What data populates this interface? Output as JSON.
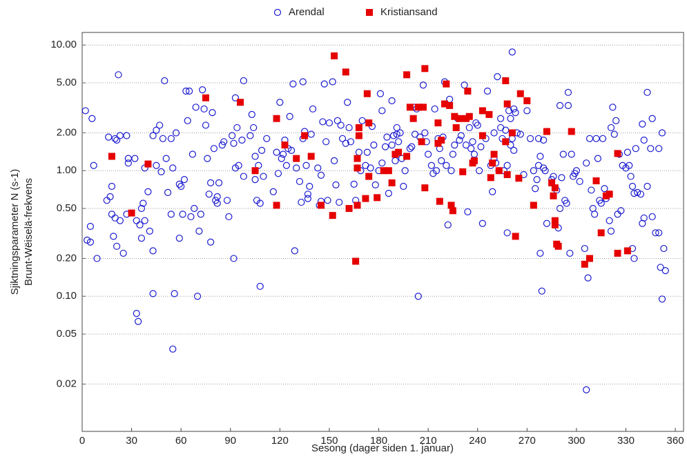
{
  "chart_data": {
    "type": "scatter",
    "xlabel": "Sesong (dager siden 1. januar)",
    "ylabel": [
      "Sjiktningsparameter N (s-1)",
      "Brunt-Wëiselä-frekvens"
    ],
    "xlim": [
      0,
      365
    ],
    "ylim": [
      0.0084,
      12.6
    ],
    "ylog": true,
    "grid": true,
    "legend": "top",
    "xticks": [
      0,
      30,
      60,
      90,
      120,
      150,
      180,
      210,
      240,
      270,
      300,
      330,
      360
    ],
    "yticks": [
      {
        "value": 10,
        "label": "10.00"
      },
      {
        "value": 5,
        "label": "5.00"
      },
      {
        "value": 2,
        "label": "2.00"
      },
      {
        "value": 1,
        "label": "1.00"
      },
      {
        "value": 0.5,
        "label": "0.50"
      },
      {
        "value": 0.2,
        "label": "0.20"
      },
      {
        "value": 0.1,
        "label": "0.10"
      },
      {
        "value": 0.05,
        "label": "0.05"
      },
      {
        "value": 0.02,
        "label": "0.02"
      }
    ],
    "series": [
      {
        "name": "Arendal",
        "color": "#1a1ad0",
        "marker": "circle",
        "x": [
          2,
          3,
          5,
          6,
          5,
          7,
          9,
          15,
          16,
          17,
          18,
          18,
          19,
          20,
          20,
          21,
          21,
          22,
          23,
          23,
          25,
          27,
          28,
          28,
          27,
          32,
          33,
          33,
          34,
          35,
          36,
          36,
          37,
          38,
          38,
          40,
          41,
          43,
          43,
          43,
          45,
          45,
          47,
          48,
          49,
          50,
          51,
          52,
          54,
          54,
          55,
          55,
          56,
          57,
          59,
          59,
          60,
          61,
          62,
          63,
          64,
          65,
          66,
          67,
          68,
          69,
          70,
          71,
          72,
          73,
          74,
          75,
          76,
          77,
          78,
          78,
          79,
          80,
          81,
          82,
          82,
          83,
          85,
          86,
          88,
          89,
          91,
          92,
          92,
          93,
          93,
          94,
          95,
          97,
          98,
          98,
          102,
          103,
          104,
          105,
          105,
          106,
          107,
          108,
          108,
          109,
          110,
          112,
          116,
          118,
          119,
          120,
          121,
          122,
          123,
          124,
          125,
          126,
          127,
          128,
          129,
          130,
          132,
          133,
          134,
          134,
          135,
          136,
          137,
          137,
          138,
          139,
          140,
          143,
          144,
          145,
          145,
          146,
          147,
          148,
          149,
          150,
          152,
          153,
          154,
          155,
          156,
          157,
          158,
          160,
          161,
          162,
          163,
          165,
          166,
          167,
          168,
          169,
          170,
          172,
          173,
          175,
          176,
          177,
          178,
          180,
          181,
          182,
          182,
          184,
          185,
          186,
          188,
          188,
          189,
          190,
          191,
          191,
          192,
          193,
          194,
          195,
          196,
          199,
          200,
          201,
          202,
          203,
          204,
          205,
          206,
          207,
          208,
          209,
          210,
          212,
          213,
          214,
          215,
          216,
          217,
          218,
          219,
          220,
          221,
          222,
          223,
          224,
          225,
          226,
          228,
          229,
          230,
          232,
          233,
          234,
          235,
          236,
          237,
          238,
          239,
          240,
          241,
          242,
          243,
          245,
          246,
          248,
          249,
          250,
          250,
          251,
          252,
          253,
          254,
          254,
          255,
          256,
          257,
          258,
          258,
          259,
          260,
          260,
          261,
          261,
          262,
          262,
          263,
          264,
          266,
          268,
          270,
          272,
          274,
          275,
          276,
          277,
          277,
          278,
          278,
          279,
          280,
          280,
          281,
          282,
          285,
          286,
          288,
          289,
          290,
          290,
          291,
          292,
          293,
          294,
          295,
          295,
          296,
          297,
          298,
          299,
          300,
          302,
          305,
          306,
          306,
          307,
          308,
          309,
          310,
          311,
          312,
          313,
          314,
          315,
          316,
          317,
          318,
          320,
          320,
          321,
          321,
          322,
          323,
          324,
          325,
          326,
          327,
          328,
          330,
          331,
          332,
          333,
          334,
          334,
          335,
          335,
          336,
          337,
          339,
          340,
          340,
          341,
          341,
          343,
          343,
          345,
          346,
          346,
          348,
          350,
          350,
          351,
          352,
          352,
          353,
          354
        ],
        "values": [
          3.0,
          0.28,
          0.27,
          2.6,
          0.36,
          1.1,
          0.2,
          0.58,
          1.85,
          0.62,
          0.45,
          0.75,
          0.3,
          0.42,
          1.8,
          0.25,
          1.75,
          5.8,
          1.9,
          0.4,
          0.22,
          1.9,
          1.25,
          1.15,
          0.45,
          1.25,
          0.4,
          0.073,
          0.063,
          0.37,
          0.5,
          0.29,
          0.55,
          0.4,
          1.05,
          0.68,
          0.33,
          0.23,
          0.105,
          1.9,
          1.1,
          2.1,
          2.3,
          0.98,
          1.8,
          5.2,
          1.25,
          0.67,
          1.8,
          0.45,
          1.05,
          0.038,
          0.105,
          2.0,
          0.29,
          0.78,
          0.75,
          0.45,
          0.85,
          4.3,
          2.5,
          4.3,
          0.43,
          1.35,
          0.5,
          3.2,
          0.1,
          0.33,
          0.45,
          4.4,
          3.1,
          2.3,
          1.25,
          0.65,
          0.27,
          0.8,
          2.9,
          1.5,
          0.58,
          0.62,
          0.55,
          0.8,
          1.6,
          1.7,
          0.58,
          0.43,
          1.9,
          0.2,
          1.65,
          3.8,
          1.05,
          2.2,
          1.1,
          1.75,
          5.2,
          0.9,
          1.9,
          2.8,
          2.2,
          1.3,
          0.85,
          0.58,
          1.1,
          0.55,
          0.12,
          1.45,
          0.9,
          1.8,
          0.68,
          1.4,
          0.95,
          3.5,
          1.25,
          1.35,
          1.75,
          1.1,
          1.5,
          2.7,
          1.45,
          4.9,
          0.23,
          1.05,
          0.82,
          0.56,
          1.8,
          5.1,
          2.05,
          1.1,
          0.65,
          0.6,
          0.75,
          1.95,
          3.1,
          1.05,
          0.53,
          0.92,
          0.57,
          2.45,
          4.9,
          1.7,
          0.58,
          2.4,
          5.1,
          1.2,
          0.77,
          2.5,
          0.56,
          2.3,
          1.8,
          1.65,
          3.5,
          2.2,
          1.7,
          0.78,
          0.58,
          1.05,
          1.4,
          1.0,
          2.5,
          1.1,
          1.4,
          1.05,
          2.25,
          1.6,
          0.77,
          1.0,
          4.1,
          1.15,
          3.0,
          1.55,
          1.85,
          0.66,
          3.6,
          1.6,
          1.9,
          1.2,
          2.2,
          1.95,
          1.7,
          2.0,
          1.25,
          0.75,
          1.0,
          1.5,
          1.55,
          3.2,
          1.95,
          3.1,
          0.1,
          1.85,
          3.2,
          4.8,
          2.0,
          1.7,
          1.35,
          1.1,
          0.95,
          3.1,
          1.0,
          1.8,
          1.5,
          1.2,
          1.85,
          5.1,
          1.1,
          0.37,
          3.7,
          1.0,
          1.35,
          1.6,
          2.6,
          1.75,
          1.9,
          4.8,
          1.6,
          0.47,
          2.2,
          1.5,
          1.7,
          1.35,
          2.4,
          2.3,
          1.0,
          1.55,
          0.38,
          1.8,
          4.3,
          1.1,
          0.68,
          2.0,
          1.25,
          1.15,
          5.6,
          1.0,
          2.6,
          2.2,
          1.8,
          1.0,
          2.1,
          1.1,
          0.32,
          3.0,
          1.6,
          2.6,
          8.8,
          1.8,
          3.1,
          1.45,
          2.9,
          2.0,
          1.95,
          0.93,
          3.0,
          1.8,
          1.0,
          0.72,
          0.85,
          1.8,
          1.1,
          0.22,
          1.3,
          0.11,
          1.05,
          1.75,
          1.0,
          0.38,
          0.85,
          0.9,
          0.7,
          0.35,
          0.5,
          3.3,
          0.88,
          1.35,
          0.58,
          0.55,
          4.2,
          3.3,
          0.22,
          1.35,
          0.9,
          0.95,
          1.0,
          0.82,
          0.24,
          0.018,
          1.15,
          0.14,
          1.8,
          0.7,
          0.5,
          0.45,
          1.8,
          1.25,
          0.58,
          0.55,
          1.8,
          0.72,
          0.6,
          0.65,
          0.4,
          2.2,
          0.33,
          3.2,
          1.95,
          2.5,
          0.45,
          1.35,
          0.48,
          1.1,
          1.05,
          1.4,
          1.1,
          0.9,
          0.75,
          0.24,
          0.66,
          0.2,
          1.5,
          0.67,
          0.65,
          2.35,
          0.38,
          1.75,
          0.42,
          4.2,
          0.75,
          1.5,
          2.6,
          0.43,
          0.32,
          1.5,
          0.32,
          0.17,
          0.095,
          2.0,
          0.24,
          0.16
        ]
      },
      {
        "name": "Kristiansand",
        "color": "#e60000",
        "marker": "square",
        "x": [
          18,
          30,
          40,
          75,
          96,
          105,
          118,
          118,
          123,
          130,
          135,
          139,
          145,
          152,
          153,
          160,
          162,
          166,
          167,
          167,
          167,
          168,
          168,
          172,
          173,
          174,
          174,
          179,
          183,
          186,
          188,
          190,
          192,
          197,
          197,
          199,
          201,
          204,
          206,
          207,
          208,
          208,
          216,
          216,
          217,
          218,
          220,
          221,
          223,
          224,
          225,
          226,
          227,
          229,
          231,
          233,
          234,
          235,
          237,
          238,
          243,
          243,
          247,
          248,
          249,
          250,
          253,
          257,
          257,
          258,
          258,
          261,
          263,
          265,
          266,
          270,
          274,
          282,
          285,
          286,
          287,
          287,
          287,
          288,
          289,
          297,
          305,
          308,
          312,
          315,
          318,
          320,
          325,
          325,
          331
        ],
        "values": [
          1.3,
          0.46,
          1.13,
          3.8,
          3.5,
          1.0,
          2.6,
          0.53,
          1.6,
          1.25,
          1.9,
          1.3,
          0.53,
          0.44,
          8.2,
          6.1,
          0.5,
          0.19,
          0.53,
          1.25,
          1.05,
          2.2,
          1.9,
          0.6,
          4.1,
          2.4,
          0.9,
          0.61,
          1.0,
          1.0,
          0.8,
          1.35,
          1.4,
          5.8,
          1.3,
          3.2,
          2.6,
          3.2,
          1.7,
          3.2,
          6.5,
          0.73,
          2.4,
          1.65,
          0.57,
          1.75,
          3.4,
          4.9,
          3.3,
          0.53,
          0.48,
          2.7,
          2.2,
          2.6,
          0.98,
          2.6,
          4.3,
          2.7,
          1.15,
          1.2,
          3.0,
          1.9,
          2.8,
          0.88,
          1.15,
          1.35,
          1.0,
          5.2,
          1.7,
          3.4,
          0.93,
          2.0,
          0.3,
          0.87,
          4.1,
          3.6,
          0.53,
          2.05,
          0.8,
          0.63,
          0.73,
          0.4,
          0.37,
          0.26,
          0.25,
          2.05,
          0.18,
          0.2,
          0.83,
          0.32,
          0.63,
          0.65,
          1.37,
          0.22,
          0.23
        ]
      }
    ]
  }
}
